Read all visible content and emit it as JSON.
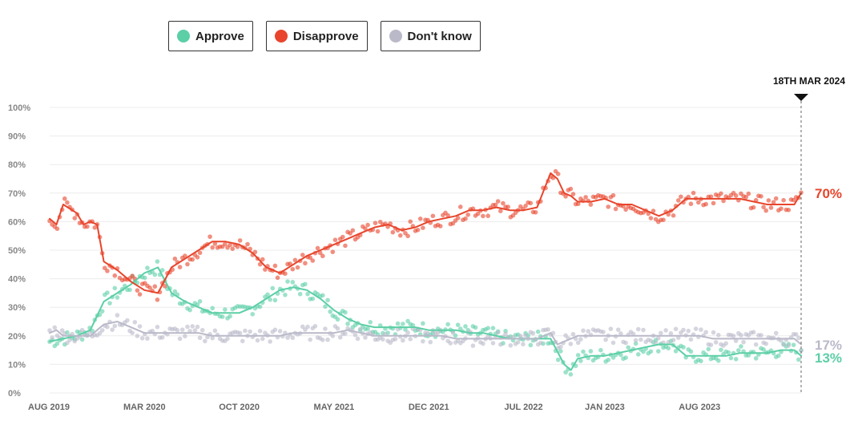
{
  "legend": [
    {
      "label": "Approve",
      "color": "#5ccfa6"
    },
    {
      "label": "Disapprove",
      "color": "#e8452c"
    },
    {
      "label": "Don't know",
      "color": "#b9b9c9"
    }
  ],
  "marker": {
    "label": "18TH MAR 2024"
  },
  "end_labels": {
    "approve": "13%",
    "disapprove": "70%",
    "dont_know": "17%"
  },
  "chart_data": {
    "type": "line",
    "title": "",
    "xlabel": "",
    "ylabel": "",
    "ylim": [
      0,
      100
    ],
    "y_ticks": [
      "0%",
      "10%",
      "20%",
      "30%",
      "40%",
      "50%",
      "60%",
      "70%",
      "80%",
      "90%",
      "100%"
    ],
    "x_ticks": [
      "AUG 2019",
      "MAR 2020",
      "OCT 2020",
      "MAY 2021",
      "DEC 2021",
      "JUL 2022",
      "JAN 2023",
      "AUG 2023"
    ],
    "x_range": [
      0,
      55.5
    ],
    "note": "x values are months since Aug 2019",
    "series": [
      {
        "name": "Approve",
        "color": "#5ccfa6",
        "x": [
          0,
          1,
          2,
          3,
          4,
          5,
          6,
          7,
          8,
          9,
          10,
          11,
          12,
          13,
          14,
          15,
          16,
          17,
          18,
          19,
          20,
          21,
          22,
          23,
          24,
          25,
          26,
          27,
          28,
          29,
          30,
          31,
          32,
          33,
          34,
          35,
          36,
          37,
          38,
          38.5,
          39,
          40,
          41,
          42,
          43,
          44,
          45,
          46,
          47,
          48,
          49,
          50,
          51,
          52,
          53,
          54,
          55,
          55.5
        ],
        "values": [
          18,
          19,
          20,
          22,
          32,
          35,
          38,
          42,
          44,
          35,
          32,
          30,
          28,
          28,
          28,
          30,
          33,
          36,
          37,
          36,
          33,
          29,
          26,
          24,
          23,
          23,
          23,
          23,
          22,
          22,
          22,
          21,
          21,
          20,
          19,
          19,
          19,
          19,
          10,
          8,
          12,
          13,
          13,
          14,
          15,
          16,
          17,
          17,
          13,
          13,
          13,
          13,
          14,
          14,
          14,
          15,
          15,
          13
        ]
      },
      {
        "name": "Disapprove",
        "color": "#e8452c",
        "x": [
          0,
          0.5,
          1,
          2,
          2.5,
          3,
          3.5,
          4,
          5,
          6,
          7,
          8,
          9,
          10,
          11,
          12,
          13,
          14,
          15,
          16,
          17,
          18,
          19,
          20,
          21,
          22,
          23,
          24,
          25,
          26,
          27,
          28,
          29,
          30,
          31,
          32,
          33,
          34,
          35,
          36,
          37,
          37.5,
          38,
          38.5,
          39,
          40,
          41,
          42,
          43,
          44,
          45,
          46,
          47,
          48,
          49,
          50,
          51,
          52,
          53,
          54,
          55,
          55.5
        ],
        "values": [
          61,
          59,
          66,
          63,
          59,
          60,
          59,
          46,
          43,
          39,
          36,
          35,
          44,
          47,
          50,
          53,
          53,
          52,
          49,
          44,
          42,
          45,
          48,
          50,
          52,
          54,
          56,
          58,
          59,
          57,
          58,
          60,
          61,
          62,
          64,
          64,
          65,
          64,
          64,
          65,
          77,
          75,
          70,
          69,
          67,
          67,
          68,
          66,
          66,
          64,
          62,
          64,
          68,
          68,
          68,
          68,
          68,
          67,
          66,
          66,
          66,
          70
        ]
      },
      {
        "name": "Don't know",
        "color": "#b9b9c9",
        "x": [
          0,
          0.5,
          1,
          2,
          3,
          4,
          5,
          6,
          7,
          8,
          9,
          10,
          11,
          12,
          13,
          14,
          15,
          16,
          17,
          18,
          19,
          20,
          21,
          22,
          23,
          24,
          25,
          26,
          27,
          28,
          29,
          30,
          31,
          32,
          33,
          34,
          35,
          36,
          37,
          37.5,
          38,
          39,
          40,
          41,
          42,
          43,
          44,
          45,
          46,
          47,
          48,
          49,
          50,
          51,
          52,
          53,
          54,
          55,
          55.5
        ],
        "values": [
          21,
          22,
          20,
          20,
          20,
          24,
          25,
          23,
          21,
          21,
          21,
          21,
          21,
          20,
          20,
          20,
          20,
          20,
          20,
          21,
          21,
          21,
          21,
          22,
          21,
          20,
          20,
          20,
          20,
          20,
          20,
          19,
          19,
          19,
          19,
          19,
          19,
          19,
          21,
          17,
          18,
          20,
          20,
          20,
          20,
          20,
          20,
          20,
          20,
          20,
          20,
          19,
          19,
          19,
          19,
          19,
          19,
          19,
          17
        ]
      }
    ]
  }
}
